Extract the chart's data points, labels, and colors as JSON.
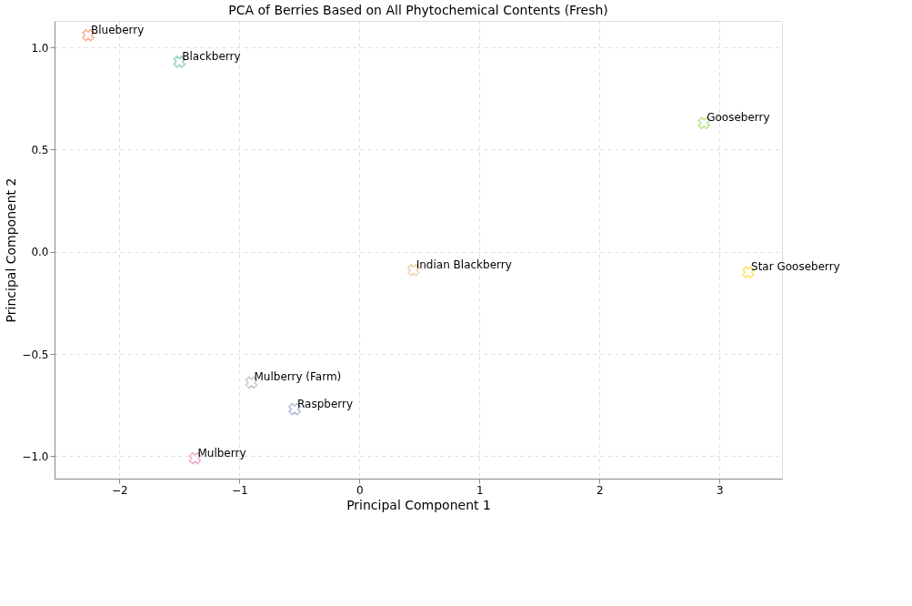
{
  "chart_data": {
    "type": "scatter",
    "title": "PCA of Berries Based on All Phytochemical Contents (Fresh)",
    "xlabel": "Principal Component 1",
    "ylabel": "Principal Component 2",
    "series": [
      {
        "name": "Blueberry",
        "color": "#fc8d62",
        "x": [
          -2.26
        ],
        "values": [
          1.06
        ]
      },
      {
        "name": "Blackberry",
        "color": "#66c2a5",
        "x": [
          -1.5
        ],
        "values": [
          0.93
        ]
      },
      {
        "name": "Gooseberry",
        "color": "#a6d854",
        "x": [
          2.87
        ],
        "values": [
          0.63
        ]
      },
      {
        "name": "Indian Blackberry",
        "color": "#e5c494",
        "x": [
          0.45
        ],
        "values": [
          -0.09
        ]
      },
      {
        "name": "Star Gooseberry",
        "color": "#ffd92f",
        "x": [
          3.24
        ],
        "values": [
          -0.1
        ]
      },
      {
        "name": "Mulberry (Farm)",
        "color": "#b3b3b3",
        "x": [
          -0.9
        ],
        "values": [
          -0.64
        ]
      },
      {
        "name": "Raspberry",
        "color": "#8da0cb",
        "x": [
          -0.54
        ],
        "values": [
          -0.77
        ]
      },
      {
        "name": "Mulberry",
        "color": "#e78ac3",
        "x": [
          -1.37
        ],
        "values": [
          -1.01
        ]
      }
    ],
    "xlim": [
      -2.54,
      3.52
    ],
    "xticks": [
      {
        "value": -2,
        "label": "−2"
      },
      {
        "value": -1,
        "label": "−1"
      },
      0,
      1,
      2,
      3
    ],
    "ylim": [
      -1.11,
      1.13
    ],
    "yticks": [
      {
        "value": -1.0,
        "label": "−1.0"
      },
      {
        "value": -0.5,
        "label": "−0.5"
      },
      {
        "value": 0.0,
        "label": "0.0"
      },
      {
        "value": 0.5,
        "label": "0.5"
      },
      {
        "value": 1.0,
        "label": "1.0"
      }
    ],
    "grid": true,
    "marker": "cross",
    "legend": false
  }
}
